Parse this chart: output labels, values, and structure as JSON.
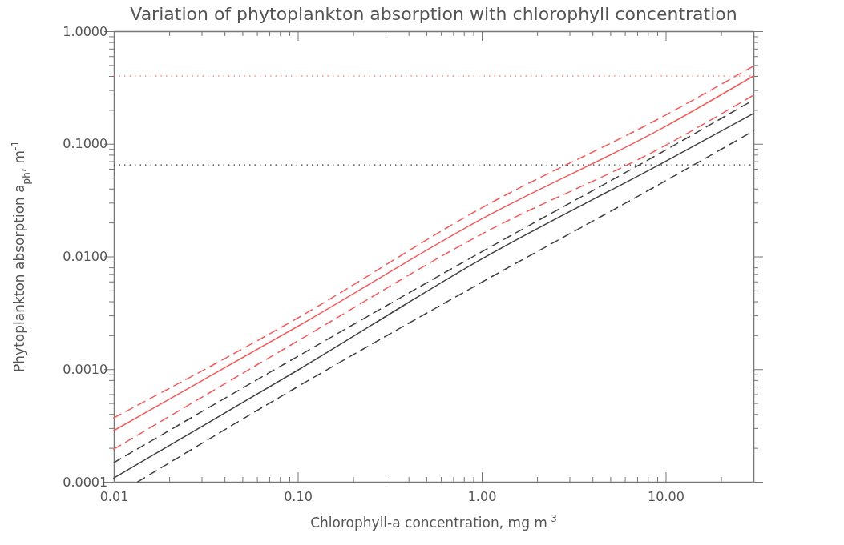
{
  "chart_data": {
    "type": "line",
    "title": "Variation of phytoplankton absorption with chlorophyll concentration",
    "xlabel": "Chlorophyll-a concentration, mg m$^{-3}$",
    "ylabel": "Phytoplankton absorption a$_{ph}$, m$^{-1}$",
    "log": "xy",
    "grid": false,
    "marker": "none",
    "xlim": [
      0.01,
      30
    ],
    "ylim": [
      0.0001,
      1
    ],
    "xticks": [
      {
        "value": 0.01,
        "label": "0.01"
      },
      {
        "value": 0.02,
        "label": null
      },
      {
        "value": 0.03,
        "label": null
      },
      {
        "value": 0.04,
        "label": null
      },
      {
        "value": 0.05,
        "label": null
      },
      {
        "value": 0.06,
        "label": null
      },
      {
        "value": 0.07,
        "label": null
      },
      {
        "value": 0.08,
        "label": null
      },
      {
        "value": 0.09,
        "label": null
      },
      {
        "value": 0.1,
        "label": "0.10"
      },
      {
        "value": 0.2,
        "label": null
      },
      {
        "value": 0.3,
        "label": null
      },
      {
        "value": 0.4,
        "label": null
      },
      {
        "value": 0.5,
        "label": null
      },
      {
        "value": 0.6,
        "label": null
      },
      {
        "value": 0.7,
        "label": null
      },
      {
        "value": 0.8,
        "label": null
      },
      {
        "value": 0.9,
        "label": null
      },
      {
        "value": 1,
        "label": "1.00"
      },
      {
        "value": 2,
        "label": null
      },
      {
        "value": 3,
        "label": null
      },
      {
        "value": 4,
        "label": null
      },
      {
        "value": 5,
        "label": null
      },
      {
        "value": 6,
        "label": null
      },
      {
        "value": 7,
        "label": null
      },
      {
        "value": 8,
        "label": null
      },
      {
        "value": 9,
        "label": null
      },
      {
        "value": 10,
        "label": "10.00"
      },
      {
        "value": 20,
        "label": null
      }
    ],
    "yticks": [
      {
        "value": 0.0001,
        "label": "0.0001"
      },
      {
        "value": 0.0002,
        "label": null
      },
      {
        "value": 0.0003,
        "label": null
      },
      {
        "value": 0.0004,
        "label": null
      },
      {
        "value": 0.0005,
        "label": null
      },
      {
        "value": 0.0006,
        "label": null
      },
      {
        "value": 0.0007,
        "label": null
      },
      {
        "value": 0.0008,
        "label": null
      },
      {
        "value": 0.0009,
        "label": null
      },
      {
        "value": 0.001,
        "label": "0.0010"
      },
      {
        "value": 0.002,
        "label": null
      },
      {
        "value": 0.003,
        "label": null
      },
      {
        "value": 0.004,
        "label": null
      },
      {
        "value": 0.005,
        "label": null
      },
      {
        "value": 0.006,
        "label": null
      },
      {
        "value": 0.007,
        "label": null
      },
      {
        "value": 0.008,
        "label": null
      },
      {
        "value": 0.009,
        "label": null
      },
      {
        "value": 0.01,
        "label": "0.0100"
      },
      {
        "value": 0.02,
        "label": null
      },
      {
        "value": 0.03,
        "label": null
      },
      {
        "value": 0.04,
        "label": null
      },
      {
        "value": 0.05,
        "label": null
      },
      {
        "value": 0.06,
        "label": null
      },
      {
        "value": 0.07,
        "label": null
      },
      {
        "value": 0.08,
        "label": null
      },
      {
        "value": 0.09,
        "label": null
      },
      {
        "value": 0.1,
        "label": "0.1000"
      },
      {
        "value": 0.2,
        "label": null
      },
      {
        "value": 0.3,
        "label": null
      },
      {
        "value": 0.4,
        "label": null
      },
      {
        "value": 0.5,
        "label": null
      },
      {
        "value": 0.6,
        "label": null
      },
      {
        "value": 0.7,
        "label": null
      },
      {
        "value": 0.8,
        "label": null
      },
      {
        "value": 0.9,
        "label": null
      },
      {
        "value": 1,
        "label": "1.0000"
      }
    ],
    "x": [
      0.01,
      0.1,
      1,
      10,
      30
    ],
    "series": [
      {
        "color": "#f25c5c",
        "line_style": "dashed",
        "values": [
          0.00037,
          0.00285,
          0.027,
          0.18,
          0.49
        ]
      },
      {
        "color": "#f25c5c",
        "line_style": "solid",
        "values": [
          0.000285,
          0.0024,
          0.0215,
          0.143,
          0.4
        ]
      },
      {
        "color": "#f25c5c",
        "line_style": "dashed",
        "values": [
          0.000195,
          0.00178,
          0.0158,
          0.097,
          0.27
        ]
      },
      {
        "color": "#404040",
        "line_style": "dashed",
        "values": [
          0.000148,
          0.0013,
          0.011,
          0.088,
          0.245
        ]
      },
      {
        "color": "#404040",
        "line_style": "solid",
        "values": [
          0.000108,
          0.00098,
          0.0095,
          0.07,
          0.186
        ]
      },
      {
        "color": "#404040",
        "line_style": "dashed",
        "x": [
          0.0135,
          0.1,
          1,
          10,
          30
        ],
        "values": [
          0.0001,
          0.0007,
          0.0059,
          0.047,
          0.13
        ]
      }
    ],
    "ref_lines": [
      {
        "axis": "y",
        "value": 0.4,
        "color": "#f25c5c",
        "line_style": "dotted"
      },
      {
        "axis": "y",
        "value": 0.065,
        "color": "#404040",
        "line_style": "dotted"
      }
    ]
  }
}
